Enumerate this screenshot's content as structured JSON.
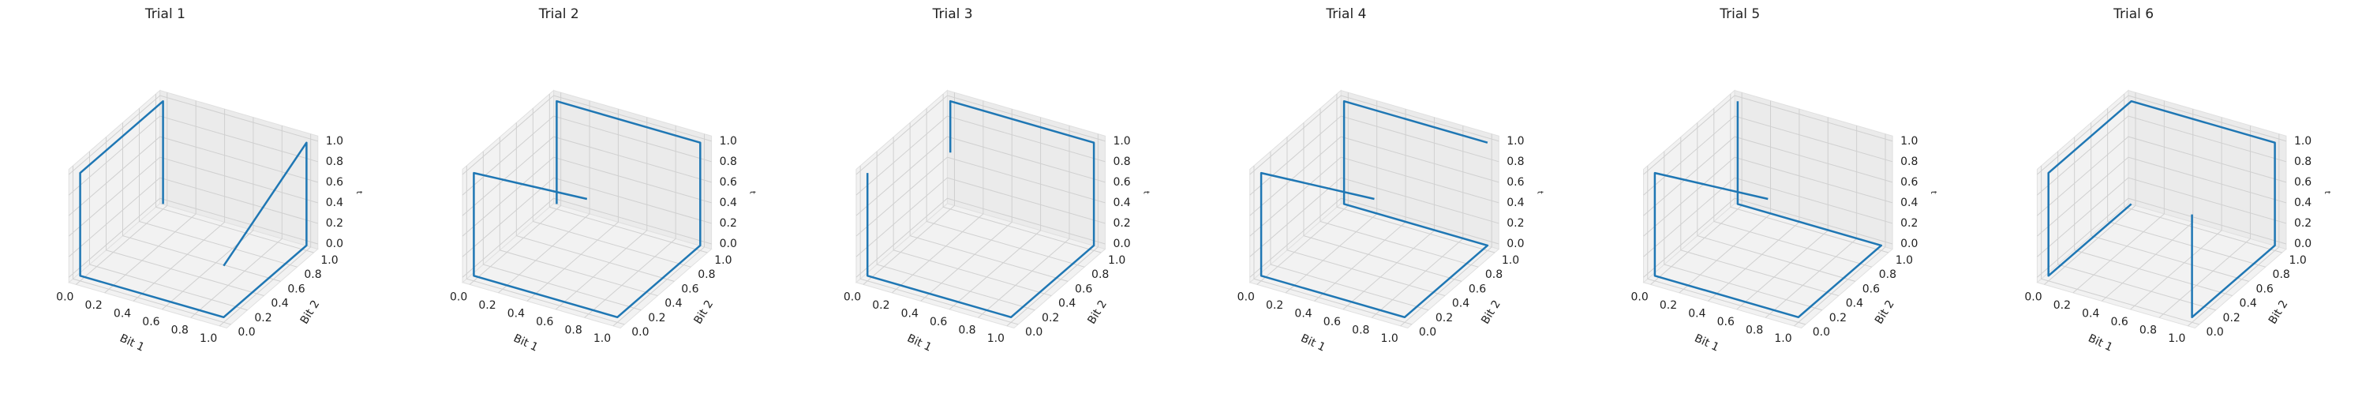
{
  "chart_data": [
    {
      "type": "line3d",
      "title": "Trial 1",
      "xlabel": "Bit 1",
      "ylabel": "Bit 2",
      "zlabel": "t",
      "color": "#1f77b4",
      "x": [
        0,
        0,
        0,
        0,
        1,
        1,
        1,
        1
      ],
      "y": [
        1,
        1,
        0,
        0,
        0,
        1,
        1,
        0
      ],
      "z": [
        0,
        1,
        1,
        0,
        0,
        0,
        1,
        0.5
      ],
      "xlim": [
        0,
        1
      ],
      "ylim": [
        0,
        1
      ],
      "zlim": [
        0,
        1
      ],
      "xticks": [
        {
          "value": 0,
          "label": "0.0"
        },
        {
          "value": 0.2,
          "label": "0.2"
        },
        {
          "value": 0.4,
          "label": "0.4"
        },
        {
          "value": 0.6,
          "label": "0.6"
        },
        {
          "value": 0.8,
          "label": "0.8"
        },
        {
          "value": 1,
          "label": "1.0"
        }
      ],
      "yticks": [
        {
          "value": 0,
          "label": "0.0"
        },
        {
          "value": 0.2,
          "label": "0.2"
        },
        {
          "value": 0.4,
          "label": "0.4"
        },
        {
          "value": 0.6,
          "label": "0.6"
        },
        {
          "value": 0.8,
          "label": "0.8"
        },
        {
          "value": 1,
          "label": "1.0"
        }
      ],
      "zticks": [
        {
          "value": 0,
          "label": "0.0"
        },
        {
          "value": 0.2,
          "label": "0.2"
        },
        {
          "value": 0.4,
          "label": "0.4"
        },
        {
          "value": 0.6,
          "label": "0.6"
        },
        {
          "value": 0.8,
          "label": "0.8"
        },
        {
          "value": 1,
          "label": "1.0"
        }
      ]
    },
    {
      "type": "line3d",
      "title": "Trial 2",
      "xlabel": "Bit 1",
      "ylabel": "Bit 2",
      "zlabel": "t",
      "color": "#1f77b4",
      "x": [
        0.5,
        0,
        0,
        0,
        1,
        1,
        1,
        0,
        0
      ],
      "y": [
        0.5,
        0,
        0,
        0,
        0,
        1,
        1,
        1,
        1
      ],
      "z": [
        0.6,
        1,
        1,
        0,
        0,
        0,
        1,
        1,
        0
      ],
      "xlim": [
        0,
        1
      ],
      "ylim": [
        0,
        1
      ],
      "zlim": [
        0,
        1
      ],
      "xticks": [
        {
          "value": 0,
          "label": "0.0"
        },
        {
          "value": 0.2,
          "label": "0.2"
        },
        {
          "value": 0.4,
          "label": "0.4"
        },
        {
          "value": 0.6,
          "label": "0.6"
        },
        {
          "value": 0.8,
          "label": "0.8"
        },
        {
          "value": 1,
          "label": "1.0"
        }
      ],
      "yticks": [
        {
          "value": 0,
          "label": "0.0"
        },
        {
          "value": 0.2,
          "label": "0.2"
        },
        {
          "value": 0.4,
          "label": "0.4"
        },
        {
          "value": 0.6,
          "label": "0.6"
        },
        {
          "value": 0.8,
          "label": "0.8"
        },
        {
          "value": 1,
          "label": "1.0"
        }
      ],
      "zticks": [
        {
          "value": 0,
          "label": "0.0"
        },
        {
          "value": 0.2,
          "label": "0.2"
        },
        {
          "value": 0.4,
          "label": "0.4"
        },
        {
          "value": 0.6,
          "label": "0.6"
        },
        {
          "value": 0.8,
          "label": "0.8"
        },
        {
          "value": 1,
          "label": "1.0"
        }
      ]
    },
    {
      "type": "line3d",
      "title": "Trial 3",
      "xlabel": "Bit 1",
      "ylabel": "Bit 2",
      "zlabel": "t",
      "color": "#1f77b4",
      "x": [
        0,
        0,
        0,
        1,
        1,
        1,
        0,
        0
      ],
      "y": [
        0,
        0,
        0,
        0,
        1,
        1,
        1,
        1
      ],
      "z": [
        1,
        1,
        0,
        0,
        0,
        1,
        1,
        0.5
      ],
      "xlim": [
        0,
        1
      ],
      "ylim": [
        0,
        1
      ],
      "zlim": [
        0,
        1
      ],
      "xticks": [
        {
          "value": 0,
          "label": "0.0"
        },
        {
          "value": 0.2,
          "label": "0.2"
        },
        {
          "value": 0.4,
          "label": "0.4"
        },
        {
          "value": 0.6,
          "label": "0.6"
        },
        {
          "value": 0.8,
          "label": "0.8"
        },
        {
          "value": 1,
          "label": "1.0"
        }
      ],
      "yticks": [
        {
          "value": 0,
          "label": "0.0"
        },
        {
          "value": 0.2,
          "label": "0.2"
        },
        {
          "value": 0.4,
          "label": "0.4"
        },
        {
          "value": 0.6,
          "label": "0.6"
        },
        {
          "value": 0.8,
          "label": "0.8"
        },
        {
          "value": 1,
          "label": "1.0"
        }
      ],
      "zticks": [
        {
          "value": 0,
          "label": "0.0"
        },
        {
          "value": 0.2,
          "label": "0.2"
        },
        {
          "value": 0.4,
          "label": "0.4"
        },
        {
          "value": 0.6,
          "label": "0.6"
        },
        {
          "value": 0.8,
          "label": "0.8"
        },
        {
          "value": 1,
          "label": "1.0"
        }
      ]
    },
    {
      "type": "line3d",
      "title": "Trial 4",
      "xlabel": "Bit 1",
      "ylabel": "Bit 2",
      "zlabel": "t",
      "color": "#1f77b4",
      "x": [
        0.5,
        0,
        0,
        0,
        1,
        1,
        0,
        0,
        1
      ],
      "y": [
        0.5,
        0,
        0,
        0,
        0,
        1,
        1,
        1,
        1
      ],
      "z": [
        0.6,
        1,
        1,
        0,
        0,
        0,
        0,
        1,
        1
      ],
      "xlim": [
        0,
        1
      ],
      "ylim": [
        0,
        1
      ],
      "zlim": [
        0,
        1
      ],
      "xticks": [
        {
          "value": 0,
          "label": "0.0"
        },
        {
          "value": 0.2,
          "label": "0.2"
        },
        {
          "value": 0.4,
          "label": "0.4"
        },
        {
          "value": 0.6,
          "label": "0.6"
        },
        {
          "value": 0.8,
          "label": "0.8"
        },
        {
          "value": 1,
          "label": "1.0"
        }
      ],
      "yticks": [
        {
          "value": 0,
          "label": "0.0"
        },
        {
          "value": 0.2,
          "label": "0.2"
        },
        {
          "value": 0.4,
          "label": "0.4"
        },
        {
          "value": 0.6,
          "label": "0.6"
        },
        {
          "value": 0.8,
          "label": "0.8"
        },
        {
          "value": 1,
          "label": "1.0"
        }
      ],
      "zticks": [
        {
          "value": 0,
          "label": "0.0"
        },
        {
          "value": 0.2,
          "label": "0.2"
        },
        {
          "value": 0.4,
          "label": "0.4"
        },
        {
          "value": 0.6,
          "label": "0.6"
        },
        {
          "value": 0.8,
          "label": "0.8"
        },
        {
          "value": 1,
          "label": "1.0"
        }
      ]
    },
    {
      "type": "line3d",
      "title": "Trial 5",
      "xlabel": "Bit 1",
      "ylabel": "Bit 2",
      "zlabel": "t",
      "color": "#1f77b4",
      "x": [
        0.5,
        0,
        0,
        0,
        1,
        1,
        0,
        0
      ],
      "y": [
        0.5,
        0,
        0,
        0,
        0,
        1,
        1,
        1
      ],
      "z": [
        0.6,
        1,
        1,
        0,
        0,
        0,
        0,
        1
      ],
      "xlim": [
        0,
        1
      ],
      "ylim": [
        0,
        1
      ],
      "zlim": [
        0,
        1
      ],
      "xticks": [
        {
          "value": 0,
          "label": "0.0"
        },
        {
          "value": 0.2,
          "label": "0.2"
        },
        {
          "value": 0.4,
          "label": "0.4"
        },
        {
          "value": 0.6,
          "label": "0.6"
        },
        {
          "value": 0.8,
          "label": "0.8"
        },
        {
          "value": 1,
          "label": "1.0"
        }
      ],
      "yticks": [
        {
          "value": 0,
          "label": "0.0"
        },
        {
          "value": 0.2,
          "label": "0.2"
        },
        {
          "value": 0.4,
          "label": "0.4"
        },
        {
          "value": 0.6,
          "label": "0.6"
        },
        {
          "value": 0.8,
          "label": "0.8"
        },
        {
          "value": 1,
          "label": "1.0"
        }
      ],
      "zticks": [
        {
          "value": 0,
          "label": "0.0"
        },
        {
          "value": 0.2,
          "label": "0.2"
        },
        {
          "value": 0.4,
          "label": "0.4"
        },
        {
          "value": 0.6,
          "label": "0.6"
        },
        {
          "value": 0.8,
          "label": "0.8"
        },
        {
          "value": 1,
          "label": "1.0"
        }
      ]
    },
    {
      "type": "line3d",
      "title": "Trial 6",
      "xlabel": "Bit 1",
      "ylabel": "Bit 2",
      "zlabel": "t",
      "color": "#1f77b4",
      "x": [
        1,
        1,
        1,
        1,
        0,
        0,
        0,
        0
      ],
      "y": [
        0,
        0,
        1,
        1,
        1,
        0,
        0,
        1
      ],
      "z": [
        1,
        0,
        0,
        1,
        1,
        1,
        0,
        0
      ],
      "xlim": [
        0,
        1
      ],
      "ylim": [
        0,
        1
      ],
      "zlim": [
        0,
        1
      ],
      "xticks": [
        {
          "value": 0,
          "label": "0.0"
        },
        {
          "value": 0.2,
          "label": "0.2"
        },
        {
          "value": 0.4,
          "label": "0.4"
        },
        {
          "value": 0.6,
          "label": "0.6"
        },
        {
          "value": 0.8,
          "label": "0.8"
        },
        {
          "value": 1,
          "label": "1.0"
        }
      ],
      "yticks": [
        {
          "value": 0,
          "label": "0.0"
        },
        {
          "value": 0.2,
          "label": "0.2"
        },
        {
          "value": 0.4,
          "label": "0.4"
        },
        {
          "value": 0.6,
          "label": "0.6"
        },
        {
          "value": 0.8,
          "label": "0.8"
        },
        {
          "value": 1,
          "label": "1.0"
        }
      ],
      "zticks": [
        {
          "value": 0,
          "label": "0.0"
        },
        {
          "value": 0.2,
          "label": "0.2"
        },
        {
          "value": 0.4,
          "label": "0.4"
        },
        {
          "value": 0.6,
          "label": "0.6"
        },
        {
          "value": 0.8,
          "label": "0.8"
        },
        {
          "value": 1,
          "label": "1.0"
        }
      ]
    }
  ]
}
